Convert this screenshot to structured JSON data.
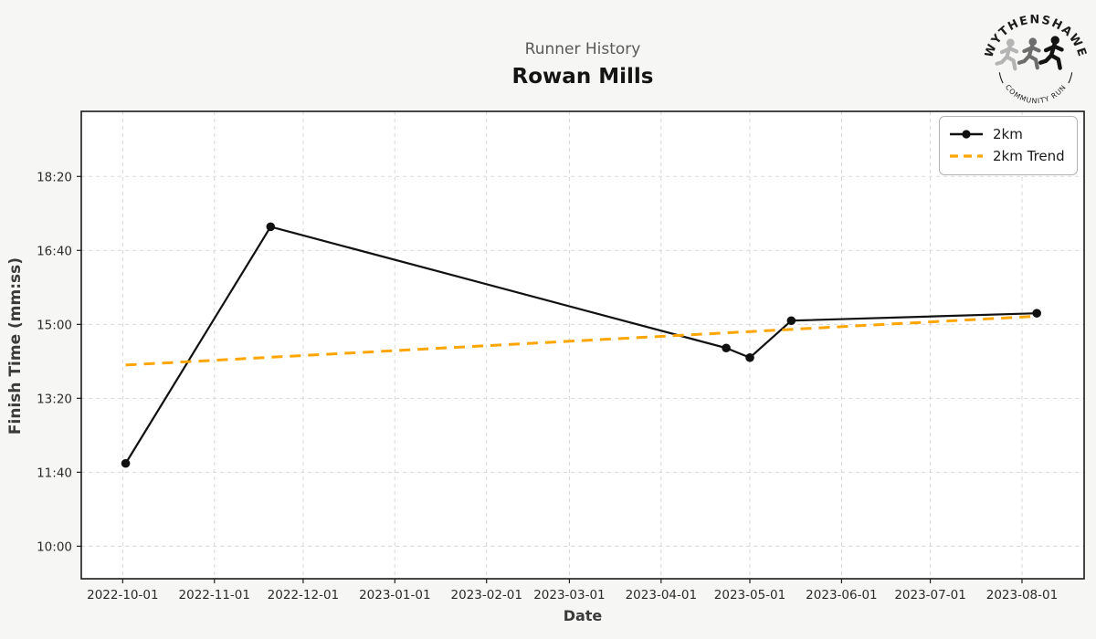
{
  "header": {
    "suptitle": "Runner History",
    "title": "Rowan Mills"
  },
  "logo": {
    "top_text": "WYTHENSHAWE",
    "bottom_text": "COMMUNITY RUN",
    "runner_colors": [
      "#b4b4b4",
      "#6d6d6d",
      "#131313"
    ],
    "text_color": "#1d1d1d"
  },
  "chart_data": {
    "type": "line",
    "title": "Rowan Mills",
    "subtitle": "Runner History",
    "xlabel": "Date",
    "ylabel": "Finish Time (mm:ss)",
    "grid": true,
    "grid_color": "#d7d7d7",
    "plot_bg": "#ffffff",
    "spine_color": "#1a1a1a",
    "tick_label_color": "#2b2b2b",
    "legend_position": "upper right",
    "xlim": [
      "2022-09-17",
      "2023-08-22"
    ],
    "ylim": [
      "09:16",
      "19:48"
    ],
    "x_tick_labels": [
      "2022-10-01",
      "2022-11-01",
      "2022-12-01",
      "2023-01-01",
      "2023-02-01",
      "2023-03-01",
      "2023-04-01",
      "2023-05-01",
      "2023-06-01",
      "2023-07-01",
      "2023-08-01"
    ],
    "y_tick_labels": [
      "10:00",
      "11:40",
      "13:20",
      "15:00",
      "16:40",
      "18:20"
    ],
    "series": [
      {
        "name": "2km",
        "color": "#111111",
        "style": "solid",
        "marker": "circle",
        "points": [
          {
            "date": "2022-10-02",
            "time": "11:52"
          },
          {
            "date": "2022-11-20",
            "time": "17:12"
          },
          {
            "date": "2023-04-23",
            "time": "14:28"
          },
          {
            "date": "2023-05-01",
            "time": "14:15"
          },
          {
            "date": "2023-05-15",
            "time": "15:05"
          },
          {
            "date": "2023-08-06",
            "time": "15:15"
          }
        ]
      },
      {
        "name": "2km Trend",
        "color": "#ffa500",
        "style": "dashed",
        "marker": "none",
        "points": [
          {
            "date": "2022-10-02",
            "time": "14:05"
          },
          {
            "date": "2023-08-06",
            "time": "15:11"
          }
        ]
      }
    ]
  }
}
